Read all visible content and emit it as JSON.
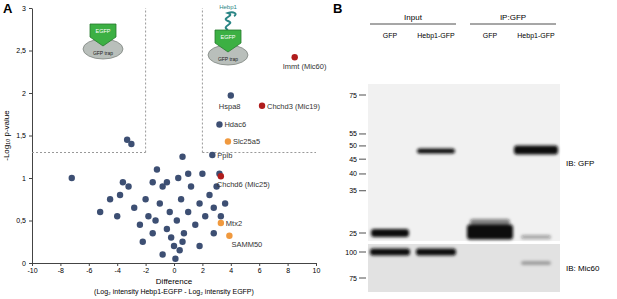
{
  "chart_data": {
    "type": "scatter",
    "x_label": [
      "Difference",
      "(Log₂ intensity Hebp1-EGFP - Log₂ intensity EGFP)"
    ],
    "y_label": "-Log₁₀ p-value",
    "xlim": [
      -10,
      10
    ],
    "xticks": [
      -10,
      -8,
      -6,
      -4,
      -2,
      0,
      2,
      4,
      6,
      8,
      10
    ],
    "ylim": [
      0,
      3
    ],
    "yticks": [
      0,
      {
        "value": 0.5,
        "label": "0,5"
      },
      1,
      {
        "value": 1.5,
        "label": "1,5"
      },
      2,
      {
        "value": 2.5,
        "label": "2,5"
      },
      3
    ],
    "grid": false,
    "marker": "circle",
    "threshold_x": [
      -2,
      2
    ],
    "threshold_y": 1.3,
    "x": [
      -7.2,
      -4.0,
      -3.8,
      -3.6,
      -3.2,
      -2.8,
      -2.4,
      -2.0,
      -1.8,
      -1.5,
      -1.3,
      -1.0,
      -0.8,
      -0.5,
      -0.3,
      -0.2,
      0.0,
      0.2,
      0.4,
      0.5,
      0.7,
      1.0,
      1.2,
      1.5,
      1.8,
      2.2,
      2.5,
      2.8,
      3.0,
      3.3,
      -1.5,
      -2.2,
      -0.8,
      0.1,
      0.6,
      0.6,
      1.0,
      2.0,
      3.2,
      3.6,
      -3.3,
      -3.0,
      -4.5,
      -5.2,
      -1.2,
      0.3,
      -0.5,
      2.8,
      1.8,
      8.5,
      4.0,
      6.2,
      3.2,
      3.8,
      2.7,
      3.3,
      3.3,
      3.9
    ],
    "values": [
      1.0,
      0.55,
      0.8,
      0.95,
      0.9,
      0.65,
      0.45,
      0.75,
      0.55,
      0.95,
      0.5,
      0.7,
      0.9,
      0.4,
      0.6,
      0.3,
      0.2,
      0.5,
      0.15,
      0.75,
      0.35,
      0.6,
      0.9,
      0.45,
      0.7,
      0.55,
      0.8,
      0.65,
      0.9,
      0.55,
      0.35,
      0.25,
      0.1,
      0.05,
      0.25,
      1.25,
      1.05,
      1.05,
      1.05,
      0.7,
      1.45,
      1.4,
      0.75,
      0.6,
      1.1,
      1.0,
      0.95,
      0.35,
      0.2,
      2.42,
      1.97,
      1.85,
      1.63,
      1.43,
      1.27,
      1.02,
      0.47,
      0.32
    ],
    "colors": [
      "#3d4f73",
      "#3d4f73",
      "#3d4f73",
      "#3d4f73",
      "#3d4f73",
      "#3d4f73",
      "#3d4f73",
      "#3d4f73",
      "#3d4f73",
      "#3d4f73",
      "#3d4f73",
      "#3d4f73",
      "#3d4f73",
      "#3d4f73",
      "#3d4f73",
      "#3d4f73",
      "#3d4f73",
      "#3d4f73",
      "#3d4f73",
      "#3d4f73",
      "#3d4f73",
      "#3d4f73",
      "#3d4f73",
      "#3d4f73",
      "#3d4f73",
      "#3d4f73",
      "#3d4f73",
      "#3d4f73",
      "#3d4f73",
      "#3d4f73",
      "#3d4f73",
      "#3d4f73",
      "#3d4f73",
      "#3d4f73",
      "#3d4f73",
      "#3d4f73",
      "#3d4f73",
      "#3d4f73",
      "#3d4f73",
      "#3d4f73",
      "#3d4f73",
      "#3d4f73",
      "#3d4f73",
      "#3d4f73",
      "#3d4f73",
      "#3d4f73",
      "#3d4f73",
      "#3d4f73",
      "#3d4f73",
      "#b01c1c",
      "#3d4f73",
      "#b01c1c",
      "#3d4f73",
      "#f0993e",
      "#3d4f73",
      "#b01c1c",
      "#f0993e",
      "#f0993e"
    ],
    "labels": [
      null,
      null,
      null,
      null,
      null,
      null,
      null,
      null,
      null,
      null,
      null,
      null,
      null,
      null,
      null,
      null,
      null,
      null,
      null,
      null,
      null,
      null,
      null,
      null,
      null,
      null,
      null,
      null,
      null,
      null,
      null,
      null,
      null,
      null,
      null,
      null,
      null,
      null,
      null,
      null,
      null,
      null,
      null,
      null,
      null,
      null,
      null,
      null,
      null,
      "Immt (Mic60)",
      "Hspa8",
      "Chchd3 (Mic19)",
      "Hdac6",
      "Slc25a5",
      "Ppib",
      "Chchd6 (Mic25)",
      "Mtx2",
      "SAMM50"
    ]
  },
  "panels": [
    "A",
    "B"
  ],
  "icons": [
    {
      "tag": "EGFP",
      "bead": "GFP trap"
    },
    {
      "fusion": "Hebp1",
      "tag": "EGFP",
      "bead": "GFP trap"
    }
  ],
  "blot": {
    "groups": [
      {
        "label": "Input"
      },
      {
        "label": "IP:GFP"
      }
    ],
    "lanes": [
      "GFP",
      "Hebp1-GFP",
      "GFP",
      "Hebp1-GFP"
    ],
    "panels": [
      {
        "label": "IB: GFP",
        "markers": [
          75,
          55,
          50,
          45,
          40,
          35,
          25
        ]
      },
      {
        "label": "IB: Mic60",
        "markers": [
          100,
          75
        ]
      }
    ]
  }
}
